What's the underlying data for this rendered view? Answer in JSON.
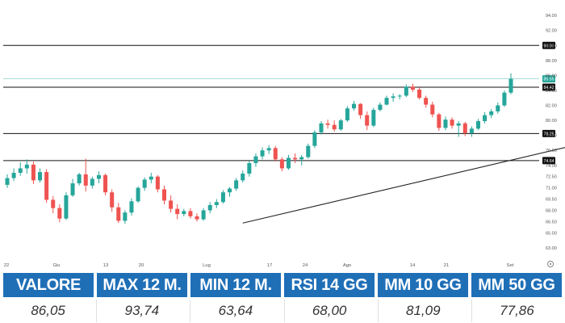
{
  "chart_data": {
    "type": "candlestick",
    "y_axis": {
      "ticks": [
        "94.00",
        "92.00",
        "90.00",
        "88.00",
        "86.00",
        "84.00",
        "82.00",
        "80.00",
        "78.00",
        "76.00",
        "74.00",
        "72.50",
        "71.00",
        "69.50",
        "68.00",
        "66.50",
        "65.00",
        "63.00"
      ],
      "range": [
        61.8,
        95.2
      ],
      "position": "right"
    },
    "x_axis": {
      "ticks": [
        "22",
        "Giu",
        "13",
        "20",
        "Lug",
        "17",
        "24",
        "Ago",
        "14",
        "21",
        "Set"
      ]
    },
    "horizontal_levels": [
      {
        "value": 90.0,
        "label": "90.00",
        "style": "black"
      },
      {
        "value": 84.42,
        "label": "84.42",
        "style": "black"
      },
      {
        "value": 78.25,
        "label": "78.25",
        "style": "black"
      },
      {
        "value": 74.64,
        "label": "74.64",
        "style": "black"
      },
      {
        "value": 85.55,
        "label": "85.55",
        "style": "last-price"
      }
    ],
    "trendline": {
      "start": {
        "index": 36,
        "value": 66.3
      },
      "end": {
        "index": 102,
        "value": 79.8
      }
    },
    "candles": [
      [
        71.4,
        72.8,
        71.0,
        72.3
      ],
      [
        72.3,
        73.6,
        71.9,
        73.0
      ],
      [
        73.0,
        74.4,
        72.6,
        73.6
      ],
      [
        73.6,
        74.8,
        72.9,
        74.1
      ],
      [
        74.1,
        74.5,
        71.5,
        72.0
      ],
      [
        72.0,
        73.6,
        71.7,
        73.1
      ],
      [
        73.1,
        73.5,
        69.0,
        69.4
      ],
      [
        69.4,
        69.9,
        67.6,
        68.3
      ],
      [
        68.3,
        68.8,
        66.4,
        66.9
      ],
      [
        66.9,
        70.4,
        66.7,
        70.0
      ],
      [
        70.0,
        72.2,
        69.8,
        71.6
      ],
      [
        71.6,
        73.0,
        71.3,
        72.8
      ],
      [
        72.8,
        74.9,
        70.5,
        71.3
      ],
      [
        71.3,
        72.5,
        70.9,
        72.2
      ],
      [
        72.2,
        73.2,
        71.6,
        72.7
      ],
      [
        72.7,
        72.9,
        70.0,
        70.4
      ],
      [
        70.4,
        70.8,
        67.8,
        68.4
      ],
      [
        68.4,
        69.0,
        66.3,
        66.6
      ],
      [
        66.6,
        68.0,
        66.2,
        67.7
      ],
      [
        67.7,
        69.6,
        67.3,
        69.2
      ],
      [
        69.2,
        71.2,
        69.0,
        71.0
      ],
      [
        71.0,
        72.4,
        70.6,
        72.1
      ],
      [
        72.1,
        73.0,
        71.6,
        72.5
      ],
      [
        72.5,
        72.7,
        70.4,
        70.8
      ],
      [
        70.8,
        71.3,
        68.8,
        69.3
      ],
      [
        69.3,
        70.0,
        67.7,
        68.2
      ],
      [
        68.2,
        68.8,
        66.8,
        67.5
      ],
      [
        67.5,
        68.2,
        67.2,
        67.9
      ],
      [
        67.9,
        68.3,
        66.9,
        67.2
      ],
      [
        67.2,
        67.6,
        66.5,
        66.8
      ],
      [
        66.8,
        68.3,
        66.6,
        68.0
      ],
      [
        68.0,
        69.1,
        67.6,
        68.7
      ],
      [
        68.7,
        69.5,
        68.3,
        69.1
      ],
      [
        69.1,
        70.7,
        68.9,
        70.4
      ],
      [
        70.4,
        71.1,
        69.8,
        70.9
      ],
      [
        70.9,
        72.3,
        70.6,
        72.0
      ],
      [
        72.0,
        73.3,
        71.7,
        72.9
      ],
      [
        72.9,
        74.6,
        72.5,
        74.3
      ],
      [
        74.3,
        75.6,
        73.8,
        75.2
      ],
      [
        75.2,
        76.4,
        74.8,
        76.0
      ],
      [
        76.0,
        76.7,
        75.5,
        76.3
      ],
      [
        76.3,
        76.6,
        74.5,
        74.8
      ],
      [
        74.8,
        75.1,
        73.2,
        73.6
      ],
      [
        73.6,
        75.4,
        73.4,
        75.0
      ],
      [
        75.0,
        75.6,
        74.3,
        74.8
      ],
      [
        74.8,
        75.4,
        74.0,
        75.1
      ],
      [
        75.1,
        76.9,
        74.9,
        76.6
      ],
      [
        76.6,
        78.7,
        76.3,
        78.4
      ],
      [
        78.4,
        79.9,
        78.1,
        79.6
      ],
      [
        79.6,
        80.1,
        78.9,
        79.4
      ],
      [
        79.4,
        80.0,
        78.5,
        78.8
      ],
      [
        78.8,
        80.2,
        78.6,
        80.0
      ],
      [
        80.0,
        81.9,
        79.8,
        81.6
      ],
      [
        81.6,
        82.6,
        81.3,
        82.2
      ],
      [
        82.2,
        82.3,
        80.2,
        80.7
      ],
      [
        80.7,
        81.2,
        78.7,
        79.3
      ],
      [
        79.3,
        81.7,
        79.1,
        81.4
      ],
      [
        81.4,
        82.4,
        81.2,
        82.1
      ],
      [
        82.1,
        83.3,
        82.0,
        83.0
      ],
      [
        83.0,
        83.6,
        82.5,
        83.2
      ],
      [
        83.2,
        83.5,
        82.8,
        83.3
      ],
      [
        83.3,
        84.8,
        83.1,
        84.5
      ],
      [
        84.5,
        84.9,
        83.8,
        84.1
      ],
      [
        84.1,
        84.4,
        82.8,
        83.0
      ],
      [
        83.0,
        83.3,
        81.7,
        82.1
      ],
      [
        82.1,
        82.5,
        80.4,
        80.8
      ],
      [
        80.8,
        81.0,
        78.6,
        79.0
      ],
      [
        79.0,
        80.5,
        78.7,
        80.1
      ],
      [
        80.1,
        80.4,
        78.9,
        79.3
      ],
      [
        79.3,
        79.9,
        77.8,
        79.6
      ],
      [
        79.6,
        79.8,
        77.9,
        78.3
      ],
      [
        78.3,
        79.2,
        77.8,
        78.9
      ],
      [
        78.9,
        80.2,
        78.7,
        79.9
      ],
      [
        79.9,
        81.1,
        79.6,
        80.7
      ],
      [
        80.7,
        81.5,
        80.3,
        81.2
      ],
      [
        81.2,
        82.4,
        80.9,
        82.0
      ],
      [
        82.0,
        84.0,
        81.8,
        83.7
      ],
      [
        83.7,
        86.3,
        83.5,
        85.55
      ]
    ]
  },
  "table": {
    "headers": [
      "VALORE",
      "MAX 12 M.",
      "MIN 12 M.",
      "RSI 14 GG",
      "MM 10 GG",
      "MM 50 GG"
    ],
    "values": [
      "86,05",
      "93,74",
      "63,64",
      "68,00",
      "81,09",
      "77,86"
    ]
  },
  "colors": {
    "up": "#26a69a",
    "down": "#ef5350",
    "header_bg": "#1f6fb7",
    "last_price": "#26a69a"
  },
  "icons": {
    "settings": "gear-icon"
  }
}
